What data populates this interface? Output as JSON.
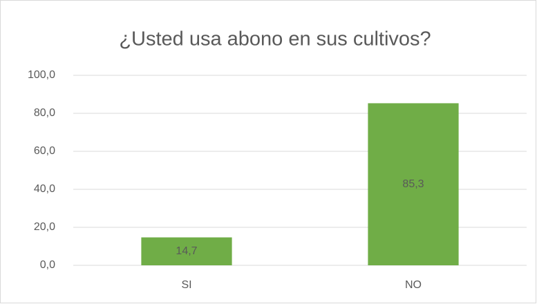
{
  "chart_data": {
    "type": "bar",
    "title": "¿Usted usa abono en sus cultivos?",
    "categories": [
      "SI",
      "NO"
    ],
    "values": [
      14.7,
      85.3
    ],
    "value_labels": [
      "14,7",
      "85,3"
    ],
    "color": "#70ad47",
    "ylim": [
      0,
      100
    ],
    "yticks": [
      {
        "value": 0,
        "label": "0,0"
      },
      {
        "value": 20,
        "label": "20,0"
      },
      {
        "value": 40,
        "label": "40,0"
      },
      {
        "value": 60,
        "label": "60,0"
      },
      {
        "value": 80,
        "label": "80,0"
      },
      {
        "value": 100,
        "label": "100,0"
      }
    ],
    "grid": true
  }
}
